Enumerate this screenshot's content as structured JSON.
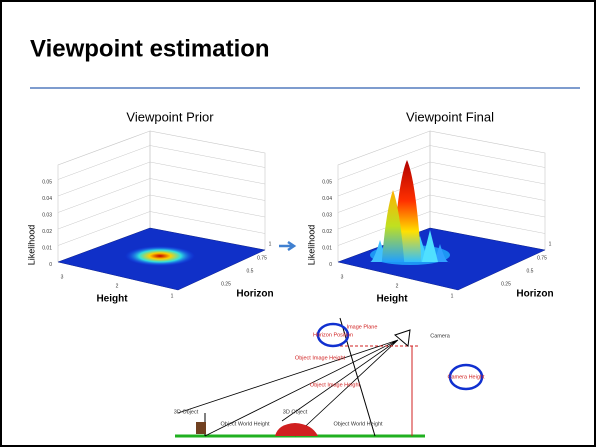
{
  "title": "Viewpoint estimation",
  "plots": [
    {
      "title": "Viewpoint Prior",
      "z_label": "Likelihood",
      "z_ticks": [
        "0.05",
        "0.04",
        "0.03",
        "0.02",
        "0.01",
        "0"
      ],
      "x_label": "Height",
      "x_ticks": [
        "3",
        "2",
        "1"
      ],
      "y_label": "Horizon",
      "y_ticks": [
        "1",
        "0.75",
        "0.5",
        "0.25"
      ]
    },
    {
      "title": "Viewpoint Final",
      "z_label": "Likelihood",
      "z_ticks": [
        "0.05",
        "0.04",
        "0.03",
        "0.02",
        "0.01",
        "0"
      ],
      "x_label": "Height",
      "x_ticks": [
        "3",
        "2",
        "1"
      ],
      "y_label": "Horizon",
      "y_ticks": [
        "1",
        "0.75",
        "0.5",
        "0.25"
      ]
    }
  ],
  "diagram": {
    "labels": [
      "Image Plane",
      "Camera",
      "Horizon Position",
      "Object Image Height",
      "Object Image Height",
      "Camera Height",
      "3D Object",
      "3D Object",
      "Object World Height",
      "Object World Height"
    ]
  }
}
